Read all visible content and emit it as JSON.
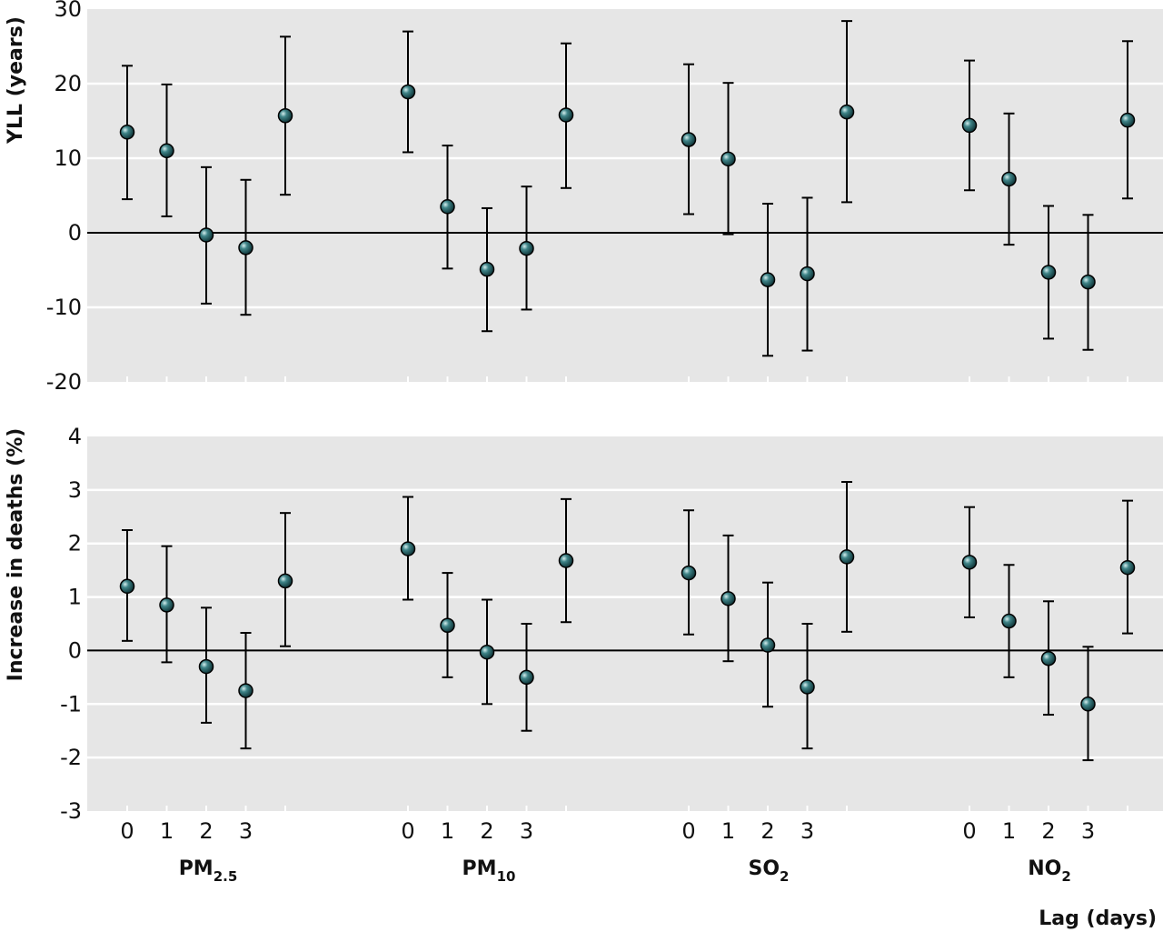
{
  "chart_data": [
    {
      "type": "scatter",
      "panel": "top",
      "ylabel": "YLL (years)",
      "ylim": [
        -20,
        30
      ],
      "yticks": [
        -20,
        -10,
        0,
        10,
        20,
        30
      ],
      "grid": true,
      "groups": [
        {
          "label": "PM",
          "sub": "2.5"
        },
        {
          "label": "PM",
          "sub": "10"
        },
        {
          "label": "SO",
          "sub": "2"
        },
        {
          "label": "NO",
          "sub": "2"
        }
      ],
      "lag_labels": [
        "0",
        "1",
        "2",
        "3",
        ""
      ],
      "series": [
        {
          "values": [
            13.5,
            11.0,
            -0.3,
            -2.0,
            15.7
          ],
          "lower": [
            4.5,
            2.2,
            -9.5,
            -11.0,
            5.1
          ],
          "upper": [
            22.4,
            19.9,
            8.8,
            7.1,
            26.3
          ]
        },
        {
          "values": [
            18.9,
            3.5,
            -4.9,
            -2.1,
            15.8
          ],
          "lower": [
            10.8,
            -4.8,
            -13.2,
            -10.3,
            6.0
          ],
          "upper": [
            27.0,
            11.7,
            3.3,
            6.2,
            25.4
          ]
        },
        {
          "values": [
            12.5,
            9.9,
            -6.3,
            -5.5,
            16.2
          ],
          "lower": [
            2.5,
            -0.2,
            -16.5,
            -15.8,
            4.1
          ],
          "upper": [
            22.6,
            20.1,
            3.9,
            4.7,
            28.4
          ]
        },
        {
          "values": [
            14.4,
            7.2,
            -5.3,
            -6.6,
            15.1
          ],
          "lower": [
            5.7,
            -1.6,
            -14.2,
            -15.7,
            4.6
          ],
          "upper": [
            23.1,
            16.0,
            3.6,
            2.4,
            25.7
          ]
        }
      ]
    },
    {
      "type": "scatter",
      "panel": "bottom",
      "ylabel": "Increase in deaths (%)",
      "xlabel": "Lag (days)",
      "ylim": [
        -3,
        4
      ],
      "yticks": [
        -3,
        -2,
        -1,
        0,
        1,
        2,
        3,
        4
      ],
      "grid": true,
      "series": [
        {
          "values": [
            1.2,
            0.85,
            -0.3,
            -0.75,
            1.3
          ],
          "lower": [
            0.18,
            -0.22,
            -1.35,
            -1.83,
            0.08
          ],
          "upper": [
            2.25,
            1.95,
            0.8,
            0.33,
            2.57
          ]
        },
        {
          "values": [
            1.9,
            0.47,
            -0.03,
            -0.5,
            1.68
          ],
          "lower": [
            0.95,
            -0.5,
            -1.0,
            -1.5,
            0.53
          ],
          "upper": [
            2.87,
            1.45,
            0.95,
            0.5,
            2.83
          ]
        },
        {
          "values": [
            1.45,
            0.97,
            0.1,
            -0.68,
            1.75
          ],
          "lower": [
            0.3,
            -0.2,
            -1.05,
            -1.83,
            0.35
          ],
          "upper": [
            2.62,
            2.15,
            1.27,
            0.5,
            3.15
          ]
        },
        {
          "values": [
            1.65,
            0.55,
            -0.15,
            -1.0,
            1.55
          ],
          "lower": [
            0.62,
            -0.5,
            -1.2,
            -2.05,
            0.32
          ],
          "upper": [
            2.68,
            1.6,
            0.92,
            0.07,
            2.8
          ]
        }
      ]
    }
  ],
  "colors": {
    "panel_bg": "#e6e6e6",
    "grid": "#ffffff",
    "marker": "#1e5a5e",
    "marker_highlight": "#cfe6e6",
    "line": "#000000"
  }
}
